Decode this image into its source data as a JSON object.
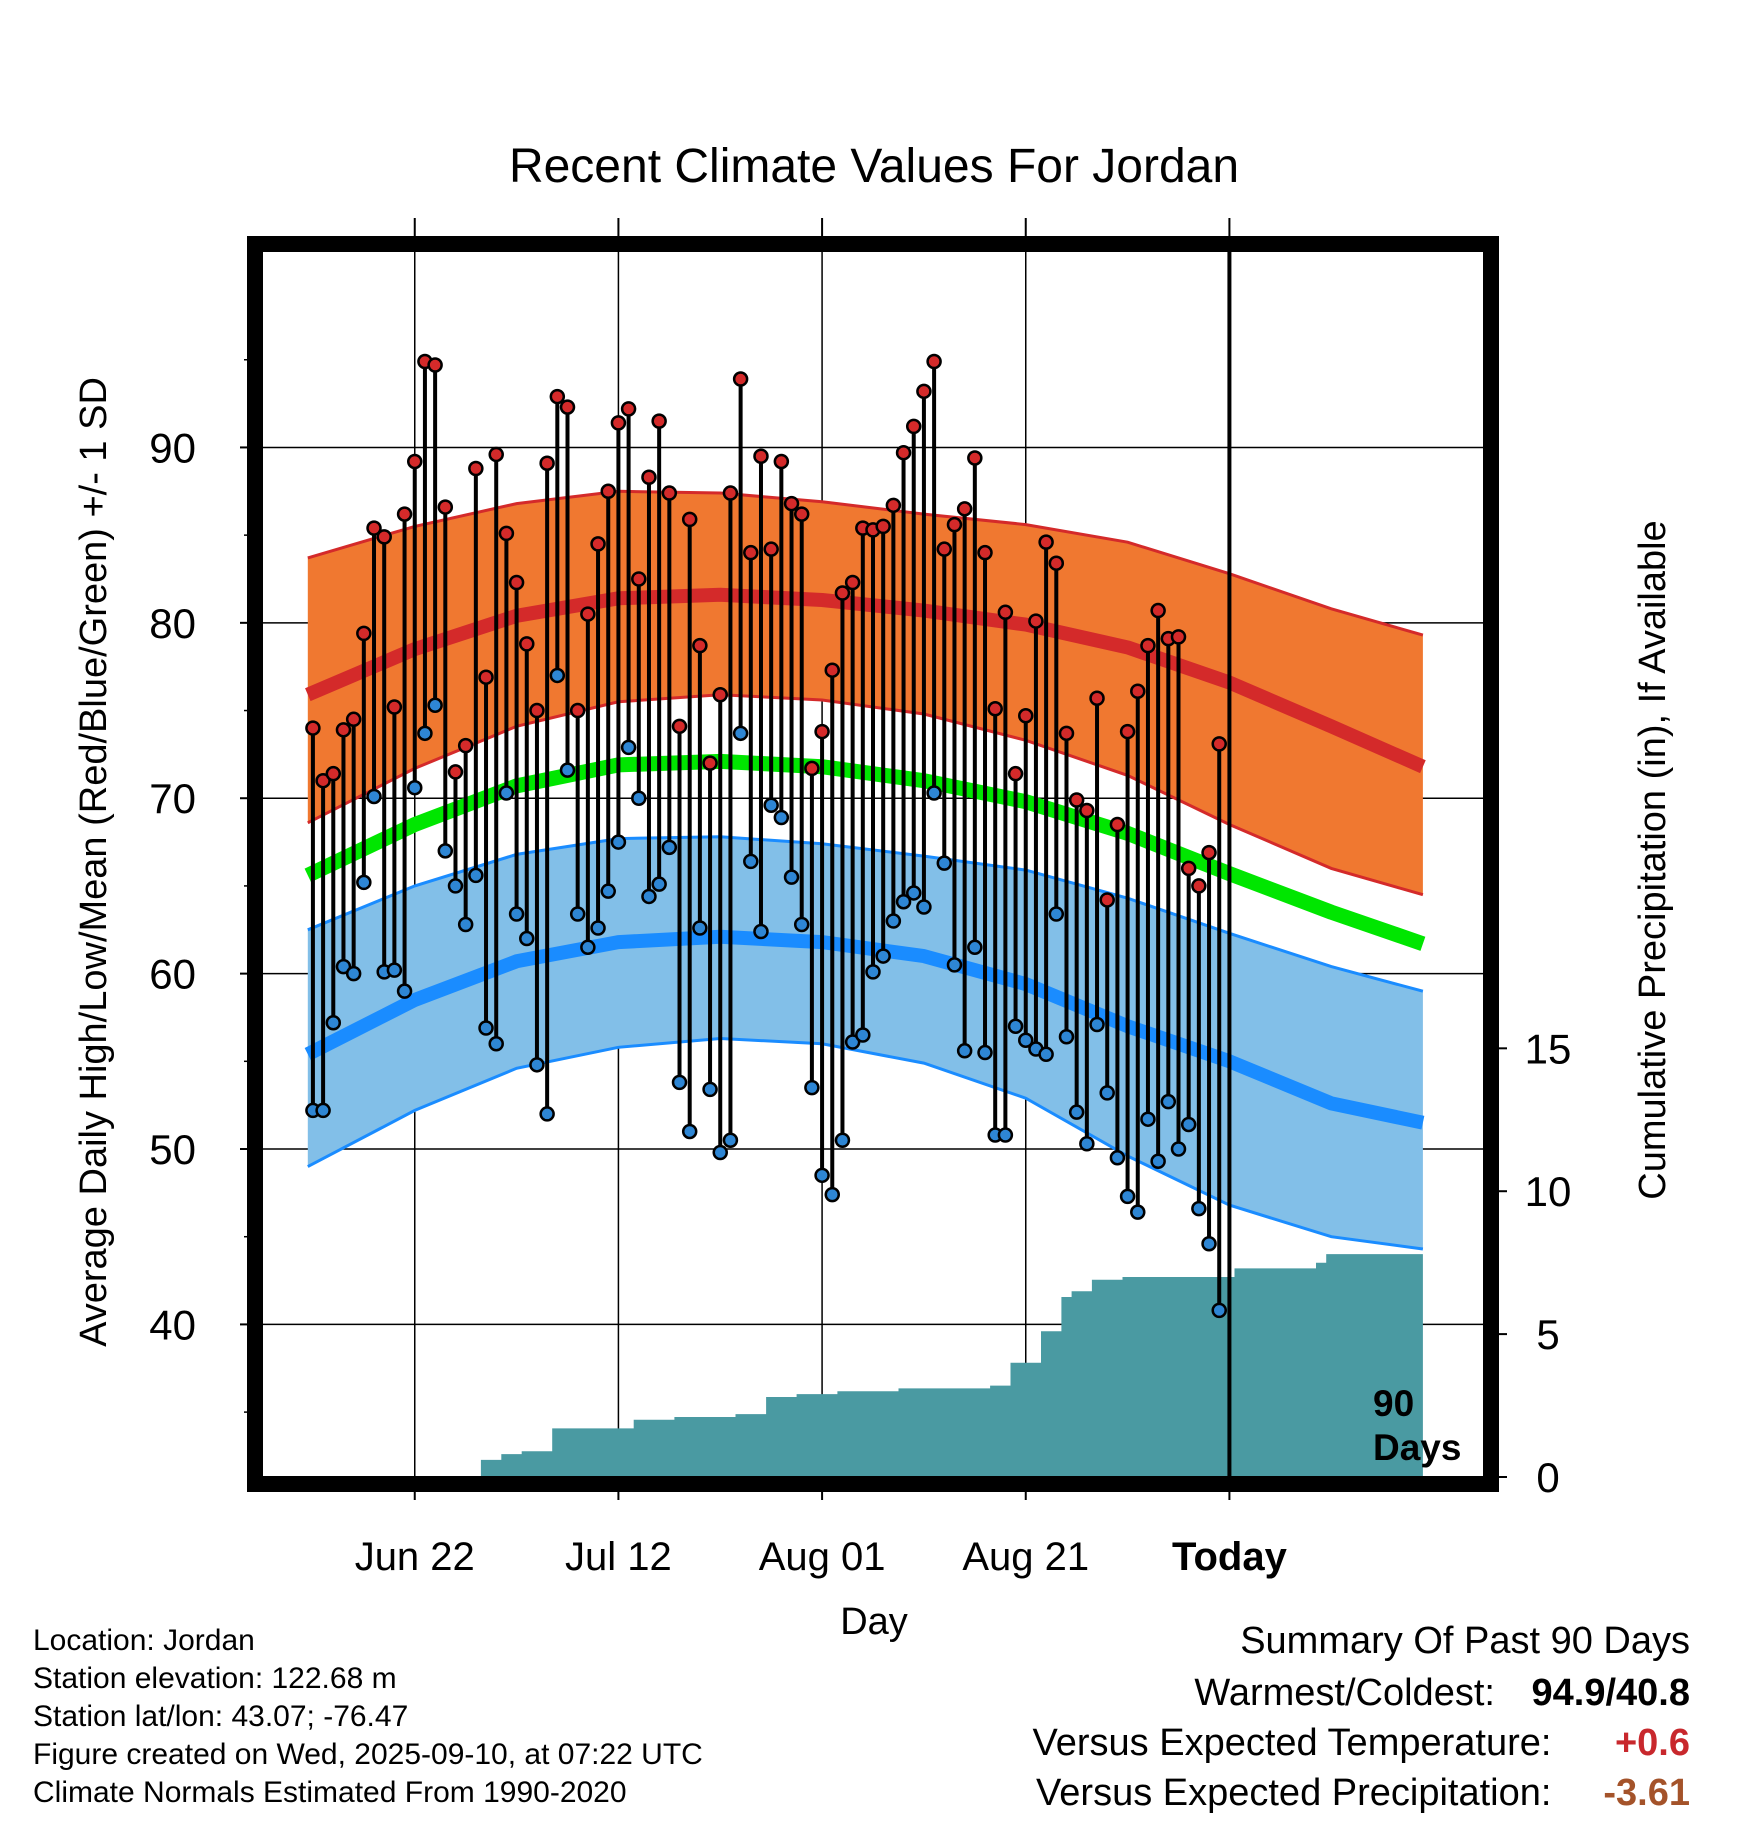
{
  "chart_data": {
    "type": "line",
    "title": "Recent Climate Values For Jordan",
    "xlabel": "Day",
    "ylabel": "Average Daily High/Low/Mean (Red/Blue/Green) +/- 1 SD",
    "y2label": "Cumulative Precipitation (in), If Available",
    "xlim": [
      -15,
      105
    ],
    "ylim": [
      31.3,
      101.2
    ],
    "y2lim": [
      0,
      42.9
    ],
    "x_tick_values": [
      0,
      20,
      40,
      60,
      80
    ],
    "x_tick_labels": [
      "Jun 22",
      "Jul 12",
      "Aug 01",
      "Aug 21",
      "Today"
    ],
    "y_tick_values": [
      40,
      50,
      60,
      70,
      80,
      90
    ],
    "y_tick_labels": [
      "40",
      "50",
      "60",
      "70",
      "80",
      "90"
    ],
    "y_minor_ticks": [
      35,
      45,
      55,
      65,
      75,
      85,
      95
    ],
    "y2_tick_values": [
      0,
      5,
      10,
      15
    ],
    "y2_tick_labels": [
      "0",
      "5",
      "10",
      "15"
    ],
    "grid": true,
    "today_marker": {
      "x": 80,
      "label_line1": "90",
      "label_line2": "Days"
    },
    "normals": {
      "x": [
        -10.5,
        0,
        10,
        20,
        30,
        40,
        50,
        60,
        70,
        80,
        90,
        99
      ],
      "high_mean": [
        75.9,
        78.5,
        80.4,
        81.4,
        81.6,
        81.3,
        80.7,
        79.9,
        78.6,
        76.6,
        74.1,
        71.8
      ],
      "high_upper": [
        83.7,
        85.5,
        86.8,
        87.5,
        87.4,
        86.9,
        86.2,
        85.6,
        84.6,
        82.8,
        80.8,
        79.3
      ],
      "high_lower": [
        68.6,
        71.7,
        74.1,
        75.5,
        75.9,
        75.6,
        74.8,
        73.3,
        71.3,
        68.5,
        66.0,
        64.5
      ],
      "avg_mean": [
        65.6,
        68.5,
        70.7,
        71.9,
        72.1,
        71.8,
        71.0,
        69.8,
        68.0,
        65.7,
        63.5,
        61.7
      ],
      "low_mean": [
        55.4,
        58.5,
        60.7,
        61.8,
        62.1,
        61.8,
        61.0,
        59.4,
        57.0,
        55.0,
        52.6,
        51.5
      ],
      "low_upper": [
        62.5,
        65.0,
        66.8,
        67.7,
        67.8,
        67.4,
        66.7,
        65.9,
        64.3,
        62.3,
        60.4,
        59.0
      ],
      "low_lower": [
        49.0,
        52.2,
        54.6,
        55.8,
        56.3,
        56.0,
        54.9,
        52.9,
        49.6,
        46.8,
        45.0,
        44.3
      ]
    },
    "series": [
      {
        "name": "High",
        "color": "#d42a2a",
        "values": [
          74.0,
          71.0,
          71.4,
          73.9,
          74.5,
          79.4,
          85.4,
          84.9,
          75.2,
          86.2,
          89.2,
          94.9,
          94.7,
          86.6,
          71.5,
          73.0,
          88.8,
          76.9,
          89.6,
          85.1,
          82.3,
          78.8,
          75.0,
          89.1,
          92.9,
          92.3,
          75.0,
          80.5,
          84.5,
          87.5,
          91.4,
          92.2,
          82.5,
          88.3,
          91.5,
          87.4,
          74.1,
          85.9,
          78.7,
          72.0,
          75.9,
          87.4,
          93.9,
          84.0,
          89.5,
          84.2,
          89.2,
          86.8,
          86.2,
          71.7,
          73.8,
          77.3,
          81.7,
          82.3,
          85.4,
          85.3,
          85.5,
          86.7,
          89.7,
          91.2,
          93.2,
          94.9,
          84.2,
          85.6,
          86.5,
          89.4,
          84.0,
          75.1,
          80.6,
          71.4,
          74.7,
          80.1,
          84.6,
          83.4,
          73.7,
          69.9,
          69.3,
          75.7,
          64.2,
          68.5,
          73.8,
          76.1,
          78.7,
          80.7,
          79.1,
          79.2,
          66.0,
          65.0,
          66.9,
          73.1
        ]
      },
      {
        "name": "Low",
        "color": "#2e86d4",
        "values": [
          52.2,
          52.2,
          57.2,
          60.4,
          60.0,
          65.2,
          70.1,
          60.1,
          60.2,
          59.0,
          70.6,
          73.7,
          75.3,
          67.0,
          65.0,
          62.8,
          65.6,
          56.9,
          56.0,
          70.3,
          63.4,
          62.0,
          54.8,
          52.0,
          77.0,
          71.6,
          63.4,
          61.5,
          62.6,
          64.7,
          67.5,
          72.9,
          70.0,
          64.4,
          65.1,
          67.2,
          53.8,
          51.0,
          62.6,
          53.4,
          49.8,
          50.5,
          73.7,
          66.4,
          62.4,
          69.6,
          68.9,
          65.5,
          62.8,
          53.5,
          48.5,
          47.4,
          50.5,
          56.1,
          56.5,
          60.1,
          61.0,
          63.0,
          64.1,
          64.6,
          63.8,
          70.3,
          66.3,
          60.5,
          55.6,
          61.5,
          55.5,
          50.8,
          50.8,
          57.0,
          56.2,
          55.7,
          55.4,
          63.4,
          56.4,
          52.1,
          50.3,
          57.1,
          53.2,
          49.5,
          47.3,
          46.4,
          51.7,
          49.3,
          52.7,
          50.0,
          51.4,
          46.6,
          44.6,
          40.8
        ]
      }
    ],
    "precip_cumulative": {
      "color": "#4a9aa2",
      "x": [
        -10.5,
        6.5,
        8.5,
        10.5,
        13.5,
        16.5,
        21.5,
        25.5,
        31.5,
        34.5,
        37.5,
        41.5,
        47.5,
        56.5,
        58.5,
        61.5,
        63.5,
        64.5,
        66.5,
        69.5,
        79.5,
        80.5,
        88.5,
        89.5,
        99
      ],
      "values": [
        0,
        0.6,
        0.8,
        0.9,
        1.7,
        1.7,
        2.0,
        2.1,
        2.2,
        2.8,
        2.9,
        3.0,
        3.1,
        3.2,
        4.0,
        5.1,
        6.3,
        6.5,
        6.9,
        7.0,
        7.0,
        7.3,
        7.5,
        7.8,
        7.8
      ]
    }
  },
  "info": {
    "location": "Location: Jordan",
    "elevation": "Station elevation: 122.68 m",
    "latlon": "Station lat/lon: 43.07; -76.47",
    "created": "Figure created on Wed, 2025-09-10, at 07:22 UTC",
    "normals": "Climate Normals Estimated From 1990-2020"
  },
  "summary": {
    "title": "Summary Of Past 90 Days",
    "warmest_label": "Warmest/Coldest:",
    "warmest_value": "94.9/40.8",
    "temp_label": "Versus Expected Temperature:",
    "temp_value": "+0.6",
    "temp_color": "#c8282d",
    "precip_label": "Versus Expected Precipitation:",
    "precip_value": "-3.61",
    "precip_color": "#a4532a"
  },
  "colors": {
    "high_band": "#f07830",
    "high_line": "#d42a2a",
    "avg_line": "#00e600",
    "low_band": "#82bfe8",
    "low_line": "#1a8cff"
  }
}
